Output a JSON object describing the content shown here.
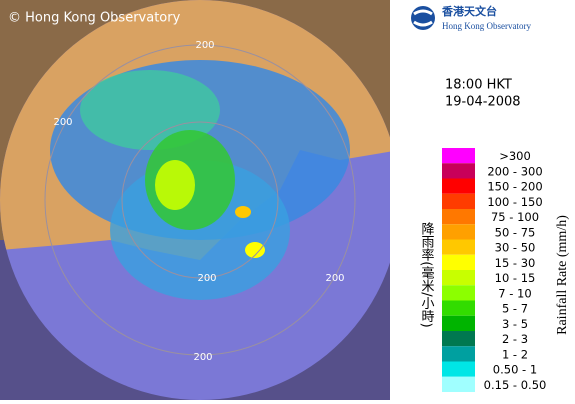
{
  "watermark": "© Hong Kong Observatory",
  "logo": {
    "chinese": "香港天文台",
    "english": "Hong Kong Observatory"
  },
  "time": "18:00 HKT",
  "date": "19-04-2008",
  "range_labels": [
    "200",
    "200",
    "200",
    "200",
    "200"
  ],
  "legend": {
    "title_zh": "降雨率(毫米/小時)",
    "title_en": "Rainfall Rate (mm/h)",
    "items": [
      {
        "label": ">300",
        "color": "#ff00ff"
      },
      {
        "label": "200 - 300",
        "color": "#c8005a"
      },
      {
        "label": "150 - 200",
        "color": "#ff0000"
      },
      {
        "label": "100 - 150",
        "color": "#ff3c00"
      },
      {
        "label": "75 - 100",
        "color": "#ff7800"
      },
      {
        "label": "50 - 75",
        "color": "#ffa000"
      },
      {
        "label": "30 - 50",
        "color": "#ffc800"
      },
      {
        "label": "15 - 30",
        "color": "#ffff00"
      },
      {
        "label": "10 - 15",
        "color": "#c8ff00"
      },
      {
        "label": "7 - 10",
        "color": "#8cff00"
      },
      {
        "label": "5 - 7",
        "color": "#32dc00"
      },
      {
        "label": "3 - 5",
        "color": "#00b400"
      },
      {
        "label": "2 - 3",
        "color": "#007850"
      },
      {
        "label": "1 - 2",
        "color": "#00a0a0"
      },
      {
        "label": "0.50 - 1",
        "color": "#00e6e6"
      },
      {
        "label": "0.15 - 0.50",
        "color": "#a0ffff"
      }
    ]
  }
}
